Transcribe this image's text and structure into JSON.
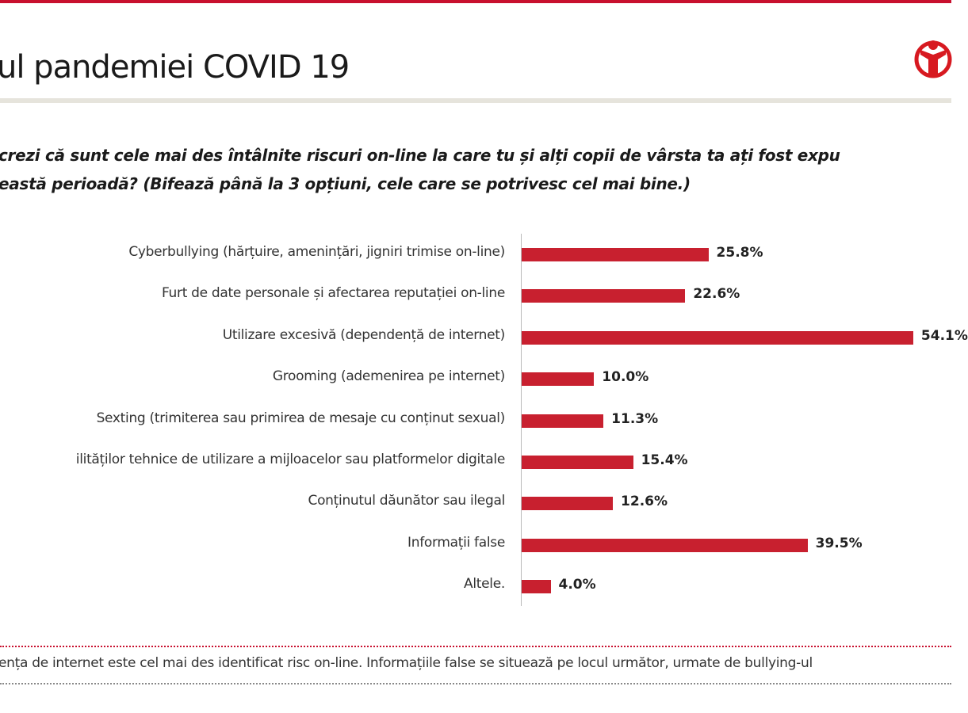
{
  "header": {
    "title": "ul pandemiei COVID 19",
    "question_line1": "crezi că sunt cele mai des întâlnite riscuri on-line la care tu și alți copii de vârsta ta ați fost expu",
    "question_line2": "eastă perioadă? (Bifează până la 3 opțiuni, cele care se potrivesc cel mai bine.)",
    "logo_icon": "child-figure-logo-icon"
  },
  "colors": {
    "accent": "#c8202f",
    "note_top_border": "#c8102e",
    "note_bottom_border": "#888888"
  },
  "chart_data": {
    "type": "bar",
    "orientation": "horizontal",
    "categories": [
      "Cyberbullying (hărțuire, amenințări, jigniri trimise on-line)",
      "Furt de date personale și afectarea reputației on-line",
      "Utilizare excesivă (dependență de internet)",
      "Grooming (ademenirea pe internet)",
      "Sexting (trimiterea sau primirea de mesaje cu conținut sexual)",
      "ilităților tehnice de utilizare a mijloacelor sau platformelor digitale",
      "Conținutul dăunător sau ilegal",
      "Informații false",
      "Altele."
    ],
    "values": [
      25.8,
      22.6,
      54.1,
      10.0,
      11.3,
      15.4,
      12.6,
      39.5,
      4.0
    ],
    "data_labels": [
      "25.8%",
      "22.6%",
      "54.1%",
      "10.0%",
      "11.3%",
      "15.4%",
      "12.6%",
      "39.5%",
      "4.0%"
    ],
    "unit": "%",
    "grid": false
  },
  "footer": {
    "note": "ența de internet este cel mai des identificat risc on-line. Informațiile false se situează pe locul următor, urmate de bullying-ul"
  }
}
